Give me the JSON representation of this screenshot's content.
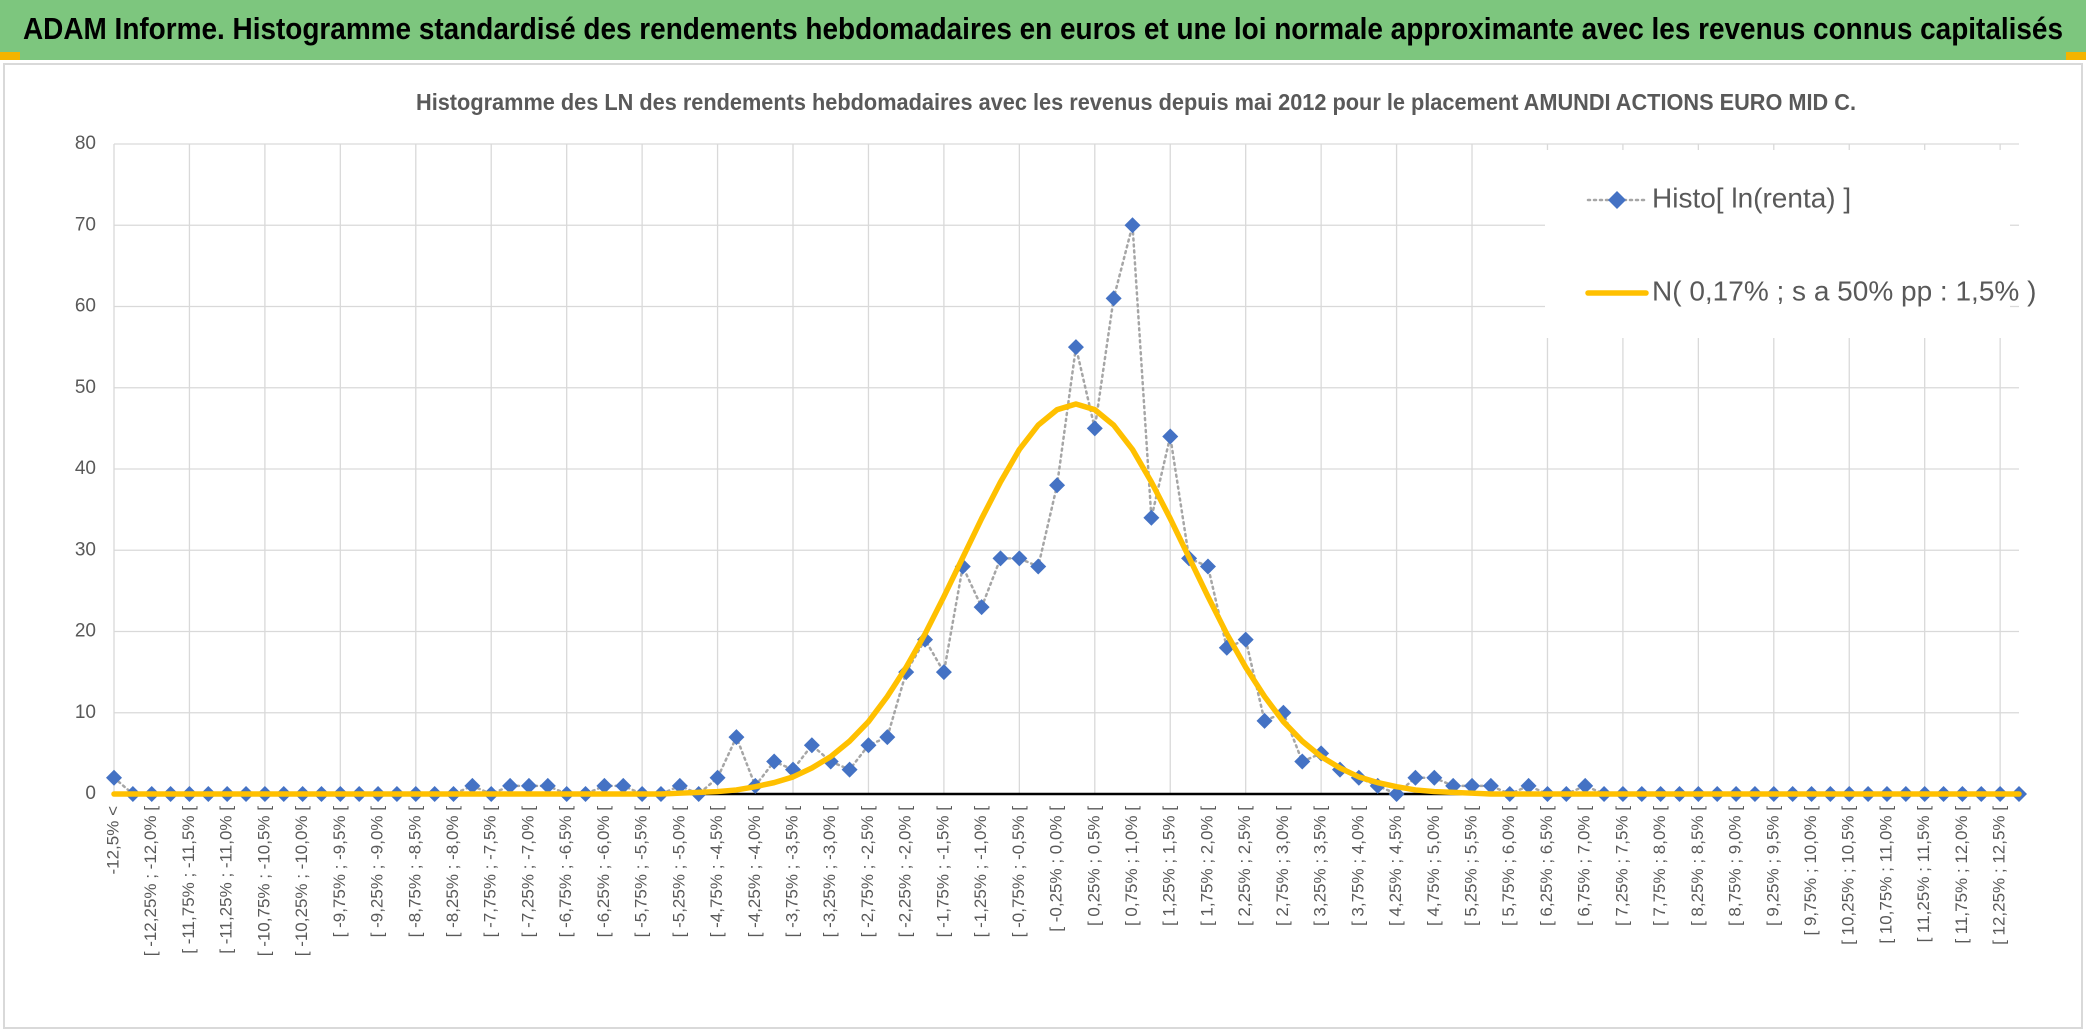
{
  "header": {
    "title": "ADAM Informe. Histogramme standardisé des rendements hebdomadaires en euros et une loi normale approximante avec les revenus connus capitalisés"
  },
  "chart_data": {
    "type": "line",
    "title": "Histogramme des LN des rendements hebdomadaires avec les revenus depuis mai 2012 pour le placement AMUNDI ACTIONS EURO MID C.",
    "categories": [
      "-12,5% <",
      null,
      "[ -12,25% ; -12,0% [",
      null,
      "[ -11,75% ; -11,5% [",
      null,
      "[ -11,25% ; -11,0% [",
      null,
      "[ -10,75% ; -10,5% [",
      null,
      "[ -10,25% ; -10,0% [",
      null,
      "[ -9,75% ; -9,5% [",
      null,
      "[ -9,25% ; -9,0% [",
      null,
      "[ -8,75% ; -8,5% [",
      null,
      "[ -8,25% ; -8,0% [",
      null,
      "[ -7,75% ; -7,5% [",
      null,
      "[ -7,25% ; -7,0% [",
      null,
      "[ -6,75% ; -6,5% [",
      null,
      "[ -6,25% ; -6,0% [",
      null,
      "[ -5,75% ; -5,5% [",
      null,
      "[ -5,25% ; -5,0% [",
      null,
      "[ -4,75% ; -4,5% [",
      null,
      "[ -4,25% ; -4,0% [",
      null,
      "[ -3,75% ; -3,5% [",
      null,
      "[ -3,25% ; -3,0% [",
      null,
      "[ -2,75% ; -2,5% [",
      null,
      "[ -2,25% ; -2,0% [",
      null,
      "[ -1,75% ; -1,5% [",
      null,
      "[ -1,25% ; -1,0% [",
      null,
      "[ -0,75% ; -0,5% [",
      null,
      "[ -0,25% ; 0,0% [",
      null,
      "[ 0,25% ; 0,5% [",
      null,
      "[ 0,75% ; 1,0% [",
      null,
      "[ 1,25% ; 1,5% [",
      null,
      "[ 1,75% ; 2,0% [",
      null,
      "[ 2,25% ; 2,5% [",
      null,
      "[ 2,75% ; 3,0% [",
      null,
      "[ 3,25% ; 3,5% [",
      null,
      "[ 3,75% ; 4,0% [",
      null,
      "[ 4,25% ; 4,5% [",
      null,
      "[ 4,75% ; 5,0% [",
      null,
      "[ 5,25% ; 5,5% [",
      null,
      "[ 5,75% ; 6,0% [",
      null,
      "[ 6,25% ; 6,5% [",
      null,
      "[ 6,75% ; 7,0% [",
      null,
      "[ 7,25% ; 7,5% [",
      null,
      "[ 7,75% ; 8,0% [",
      null,
      "[ 8,25% ; 8,5% [",
      null,
      "[ 8,75% ; 9,0% [",
      null,
      "[ 9,25% ; 9,5% [",
      null,
      "[ 9,75% ; 10,0% [",
      null,
      "[ 10,25% ; 10,5% [",
      null,
      "[ 10,75% ; 11,0% [",
      null,
      "[ 11,25% ; 11,5% [",
      null,
      "[ 11,75% ; 12,0% [",
      null,
      "[ 12,25% ; 12,5% [",
      null
    ],
    "series": [
      {
        "name": "Histo[ ln(renta) ]",
        "color": "#4472c4",
        "line_color": "#a6a6a6",
        "line_style": "dotted",
        "marker": "diamond",
        "values": [
          2,
          0,
          0,
          0,
          0,
          0,
          0,
          0,
          0,
          0,
          0,
          0,
          0,
          0,
          0,
          0,
          0,
          0,
          0,
          1,
          0,
          1,
          1,
          1,
          0,
          0,
          1,
          1,
          0,
          0,
          1,
          0,
          2,
          7,
          1,
          4,
          3,
          6,
          4,
          3,
          6,
          7,
          15,
          19,
          15,
          28,
          23,
          29,
          29,
          28,
          38,
          55,
          45,
          61,
          70,
          34,
          44,
          29,
          28,
          18,
          19,
          9,
          10,
          4,
          5,
          3,
          2,
          1,
          0,
          2,
          2,
          1,
          1,
          1,
          0,
          1,
          0,
          0,
          1,
          0,
          0,
          0,
          0,
          0,
          0,
          0,
          0,
          0,
          0,
          0,
          0,
          0,
          0,
          0,
          0,
          0,
          0,
          0,
          0,
          0,
          0,
          0
        ]
      },
      {
        "name": "N( 0,17% ; s a 50% pp : 1,5% )",
        "color": "#ffc000",
        "line_style": "solid",
        "marker": "none",
        "values": [
          0,
          0,
          0,
          0,
          0,
          0,
          0,
          0,
          0,
          0,
          0,
          0,
          0,
          0,
          0,
          0,
          0,
          0,
          0,
          0,
          0,
          0,
          0,
          0,
          0,
          0,
          0,
          0,
          0,
          0,
          0.1,
          0.2,
          0.3,
          0.5,
          0.9,
          1.4,
          2.1,
          3.2,
          4.6,
          6.5,
          8.9,
          12.0,
          15.6,
          19.7,
          24.3,
          29.1,
          33.9,
          38.4,
          42.4,
          45.4,
          47.3,
          48,
          47.3,
          45.4,
          42.4,
          38.4,
          33.9,
          29.1,
          24.3,
          19.7,
          15.6,
          12.0,
          8.9,
          6.5,
          4.6,
          3.2,
          2.1,
          1.4,
          0.9,
          0.5,
          0.3,
          0.2,
          0.1,
          0,
          0,
          0,
          0,
          0,
          0,
          0,
          0,
          0,
          0,
          0,
          0,
          0,
          0,
          0,
          0,
          0,
          0,
          0,
          0,
          0,
          0,
          0,
          0,
          0,
          0,
          0,
          0,
          0
        ]
      }
    ],
    "ylim": [
      0,
      80
    ],
    "yticks": [
      0,
      10,
      20,
      30,
      40,
      50,
      60,
      70,
      80
    ],
    "grid": true,
    "legend": "upper right"
  }
}
